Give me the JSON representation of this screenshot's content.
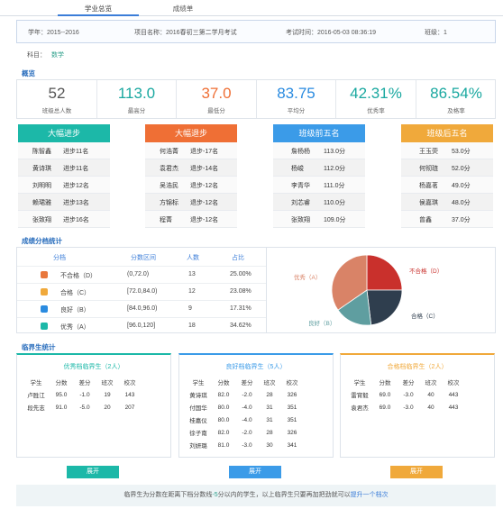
{
  "tabs": [
    "学业总览",
    "成绩单"
  ],
  "info": {
    "year": "学年：2015--2016",
    "project": "项目名称：2016春初三第二学月考试",
    "time": "考试时间：2016-05-03 08:36:19",
    "class": "班级：1"
  },
  "subject": {
    "label": "科目：",
    "value": "数学"
  },
  "overview_title": "概览",
  "stats": [
    {
      "value": "52",
      "label": "班级总人数",
      "color": "#555555"
    },
    {
      "value": "113.0",
      "label": "最高分",
      "color": "#1aa8a0"
    },
    {
      "value": "37.0",
      "label": "最低分",
      "color": "#ef6f35"
    },
    {
      "value": "83.75",
      "label": "平均分",
      "color": "#2a8be0"
    },
    {
      "value": "42.31%",
      "label": "优秀率",
      "color": "#1aa8a0"
    },
    {
      "value": "86.54%",
      "label": "及格率",
      "color": "#1aa8a0"
    }
  ],
  "rankings": [
    {
      "title": "大幅进步",
      "color": "#1cb8a8",
      "rows": [
        [
          "陈智鑫",
          "进步11名"
        ],
        [
          "黄诗琪",
          "进步11名"
        ],
        [
          "刘明明",
          "进步12名"
        ],
        [
          "赖珺雅",
          "进步13名"
        ],
        [
          "张致翔",
          "进步16名"
        ]
      ]
    },
    {
      "title": "大幅退步",
      "color": "#ef6f35",
      "rows": [
        [
          "何浩菁",
          "退步-17名"
        ],
        [
          "袁君杰",
          "退步-14名"
        ],
        [
          "吴浩民",
          "退步-12名"
        ],
        [
          "方锦标",
          "退步-12名"
        ],
        [
          "程菁",
          "退步-12名"
        ]
      ]
    },
    {
      "title": "班级前五名",
      "color": "#3b9be8",
      "rows": [
        [
          "詹杨杨",
          "113.0分"
        ],
        [
          "杨峻",
          "112.0分"
        ],
        [
          "李青华",
          "111.0分"
        ],
        [
          "刘芯睿",
          "110.0分"
        ],
        [
          "张致翔",
          "109.0分"
        ]
      ]
    },
    {
      "title": "班级后五名",
      "color": "#f0a93b",
      "rows": [
        [
          "王玉荧",
          "53.0分"
        ],
        [
          "何彻琏",
          "52.0分"
        ],
        [
          "杨嘉茗",
          "49.0分"
        ],
        [
          "侯嘉琪",
          "48.0分"
        ],
        [
          "曾鑫",
          "37.0分"
        ]
      ]
    }
  ],
  "distribution_title": "成绩分档统计",
  "distribution": {
    "headers": [
      "分档",
      "分数区间",
      "人数",
      "占比"
    ],
    "rows": [
      {
        "grade": "不合格（D）",
        "range": "(0,72.0)",
        "count": "13",
        "pct": "25.00%",
        "color": "#e8773c"
      },
      {
        "grade": "合格（C）",
        "range": "[72.0,84.0)",
        "count": "12",
        "pct": "23.08%",
        "color": "#f0a93b"
      },
      {
        "grade": "良好（B）",
        "range": "[84.0,96.0)",
        "count": "9",
        "pct": "17.31%",
        "color": "#2a8be0"
      },
      {
        "grade": "优秀（A）",
        "range": "[96.0,120]",
        "count": "18",
        "pct": "34.62%",
        "color": "#1cb8a8"
      }
    ]
  },
  "chart_data": {
    "type": "pie",
    "slices": [
      {
        "label": "不合格（D）",
        "value": 25.0,
        "color": "#c9302c"
      },
      {
        "label": "合格（C）",
        "value": 23.08,
        "color": "#2f3e4e"
      },
      {
        "label": "良好（B）",
        "value": 17.31,
        "color": "#5f9ea0"
      },
      {
        "label": "优秀（A）",
        "value": 34.62,
        "color": "#d98367"
      }
    ]
  },
  "critical_title": "临界生统计",
  "critical": [
    {
      "title": "优秀档临界生（2人）",
      "color": "#1cb8a8",
      "headers": [
        "学生",
        "分数",
        "差分",
        "班次",
        "校次"
      ],
      "rows": [
        [
          "卢胜江",
          "95.0",
          "-1.0",
          "19",
          "143"
        ],
        [
          "段先志",
          "91.0",
          "-5.0",
          "20",
          "207"
        ]
      ],
      "button": "展开"
    },
    {
      "title": "良好档临界生（5人）",
      "color": "#3b9be8",
      "headers": [
        "学生",
        "分数",
        "差分",
        "班次",
        "校次"
      ],
      "rows": [
        [
          "黄诗琪",
          "82.0",
          "-2.0",
          "28",
          "326"
        ],
        [
          "付国华",
          "80.0",
          "-4.0",
          "31",
          "351"
        ],
        [
          "桂嘉仪",
          "80.0",
          "-4.0",
          "31",
          "351"
        ],
        [
          "徐子南",
          "82.0",
          "-2.0",
          "28",
          "326"
        ],
        [
          "刘妍璐",
          "81.0",
          "-3.0",
          "30",
          "341"
        ]
      ],
      "button": "展开"
    },
    {
      "title": "合格档临界生（2人）",
      "color": "#f0a93b",
      "headers": [
        "学生",
        "分数",
        "差分",
        "班次",
        "校次"
      ],
      "rows": [
        [
          "雷宵毅",
          "69.0",
          "-3.0",
          "40",
          "443"
        ],
        [
          "袁君杰",
          "69.0",
          "-3.0",
          "40",
          "443"
        ]
      ],
      "button": "展开"
    }
  ],
  "footer": {
    "pre": "临界生为分数在距离下档分数线",
    "hi": "-5",
    "mid": "分以内的学生，以上临界生只要再加把劲就可以",
    "link": "提升一个档次"
  }
}
